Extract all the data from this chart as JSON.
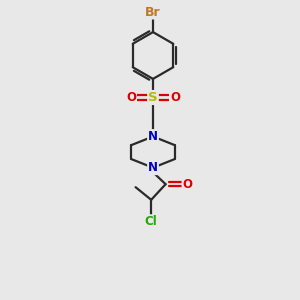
{
  "bg_color": "#e8e8e8",
  "bond_color": "#2a2a2a",
  "atom_colors": {
    "Br": "#c07820",
    "S": "#b8b800",
    "O": "#dd0000",
    "N": "#0000cc",
    "Cl": "#22aa00",
    "C": "#2a2a2a"
  },
  "bond_width": 1.6,
  "font_size_atom": 8.5,
  "figsize": [
    3.0,
    3.0
  ],
  "dpi": 100,
  "xlim": [
    0,
    10
  ],
  "ylim": [
    0,
    10
  ]
}
